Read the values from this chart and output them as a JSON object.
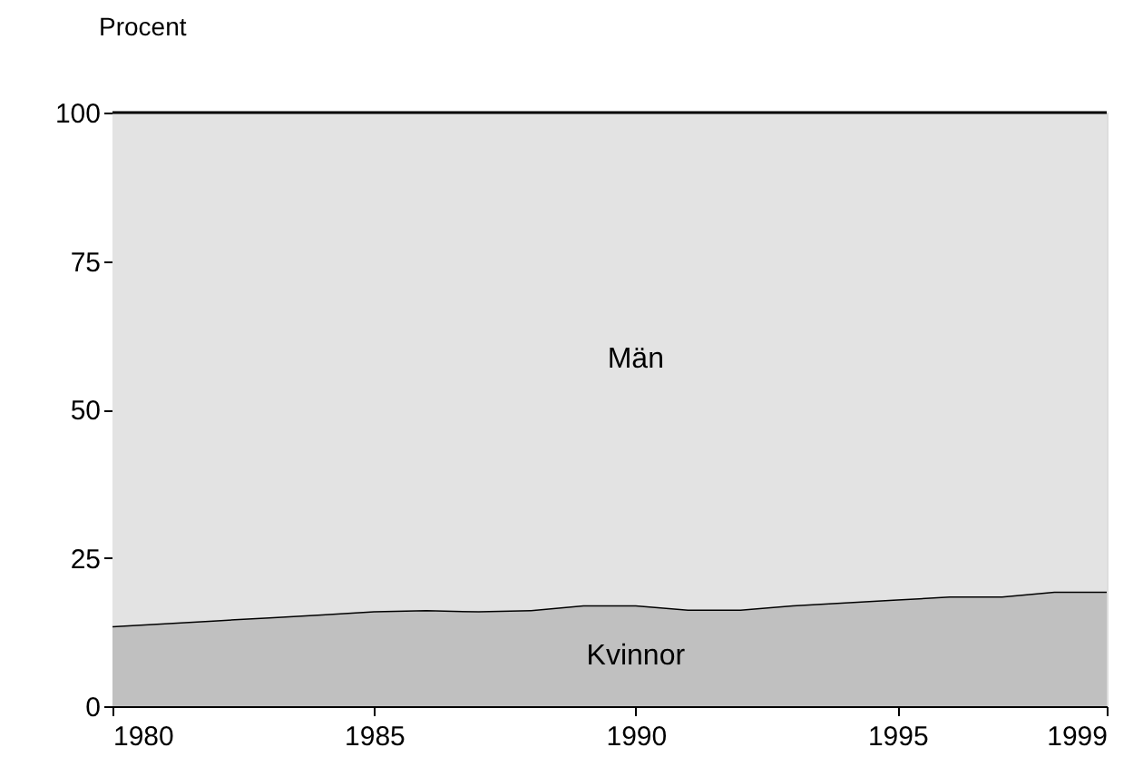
{
  "chart_data": {
    "type": "area",
    "stacked": true,
    "ylabel": "Procent",
    "x": [
      1980,
      1981,
      1982,
      1983,
      1984,
      1985,
      1986,
      1987,
      1988,
      1989,
      1990,
      1991,
      1992,
      1993,
      1994,
      1995,
      1996,
      1997,
      1998,
      1999
    ],
    "series": [
      {
        "name": "Kvinnor",
        "color": "#c0c0c0",
        "values": [
          13.5,
          14,
          14.5,
          15,
          15.5,
          16,
          16.2,
          16,
          16.2,
          17,
          17,
          16.3,
          16.3,
          17,
          17.5,
          18,
          18.5,
          18.5,
          19.3,
          19.3
        ]
      },
      {
        "name": "Män",
        "color": "#e3e3e3",
        "values": [
          86.5,
          86,
          85.5,
          85,
          84.5,
          84,
          83.8,
          84,
          83.8,
          83,
          83,
          83.7,
          83.7,
          83,
          82.5,
          82,
          81.5,
          81.5,
          80.7,
          80.7
        ]
      }
    ],
    "xlim": [
      1980,
      1999
    ],
    "xticks": [
      1980,
      1985,
      1990,
      1995,
      1999
    ],
    "ylim": [
      0,
      100
    ],
    "yticks": [
      0,
      25,
      50,
      75,
      100
    ]
  }
}
